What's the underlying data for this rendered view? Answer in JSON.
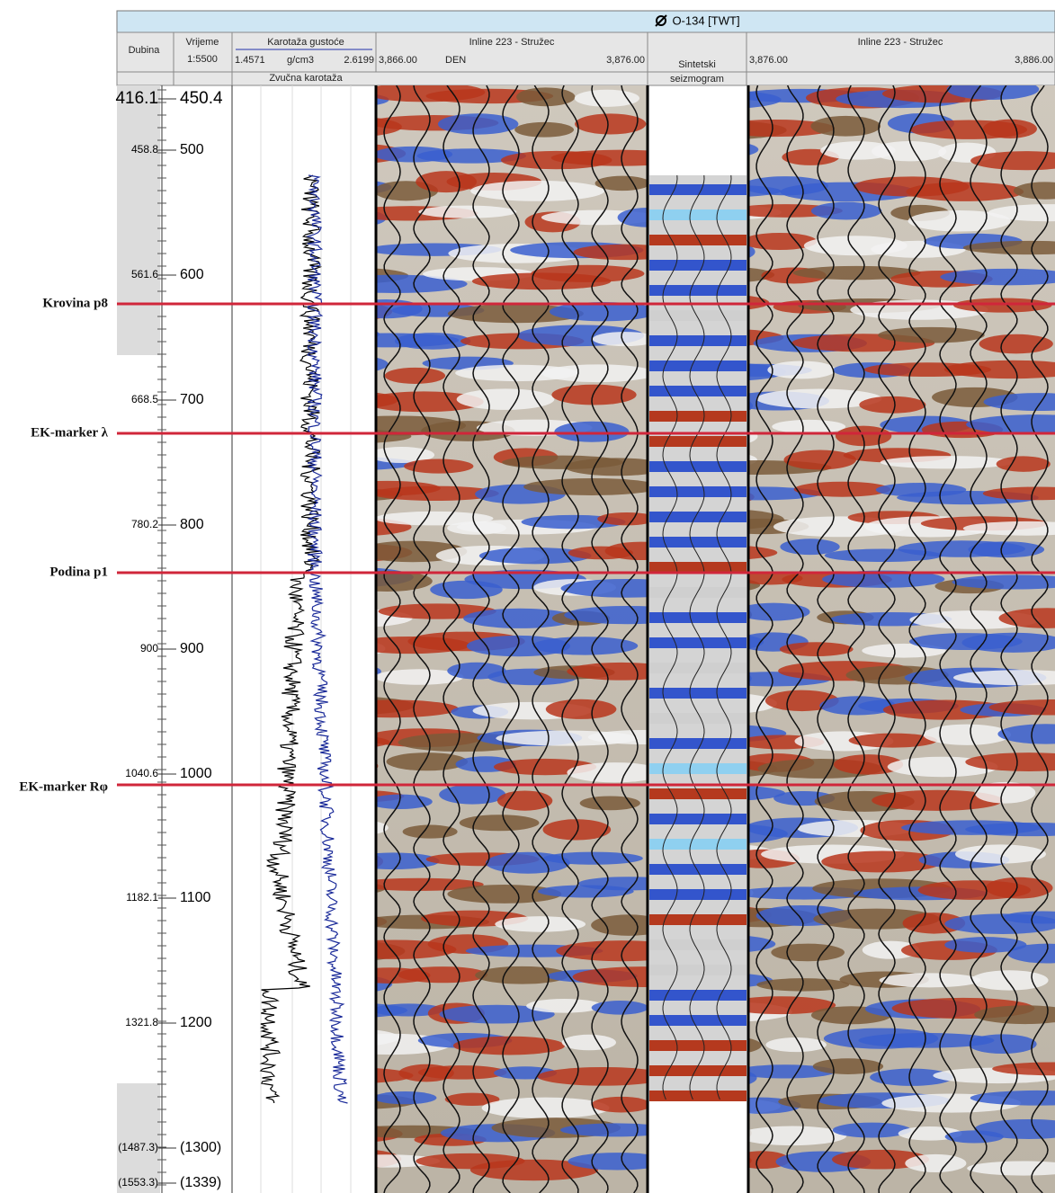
{
  "header": {
    "title": "O-134 [TWT]"
  },
  "columns": {
    "depth": "Dubina",
    "time": {
      "title": "Vrijeme",
      "scale": "1:5500"
    },
    "density": {
      "title": "Karotaža gustoće",
      "min": "1.4571",
      "unit": "g/cm3",
      "max": "2.6199"
    },
    "sonic": "Zvučna karotaža",
    "inline_left": {
      "title": "Inline 223 - Stružec",
      "from": "3,866.00",
      "log": "DEN",
      "to": "3,876.00"
    },
    "synthetic": {
      "line1": "Sintetski",
      "line2": "seizmogram"
    },
    "inline_right": {
      "title": "Inline 223 - Stružec",
      "from": "3,876.00",
      "to": "3,886.00"
    }
  },
  "depth_labels": [
    "416.1",
    "458.8",
    "561.6",
    "668.5",
    "780.2",
    "900",
    "1040.6",
    "1182.1",
    "1321.8",
    "(1487.3)",
    "(1553.3)"
  ],
  "time_labels": [
    "450.4",
    "500",
    "600",
    "700",
    "800",
    "900",
    "1000",
    "1100",
    "1200",
    "(1300)",
    "(1339)"
  ],
  "markers": [
    "Krovina p8",
    "EK-marker λ",
    "Podina p1",
    "EK-marker Rφ"
  ]
}
